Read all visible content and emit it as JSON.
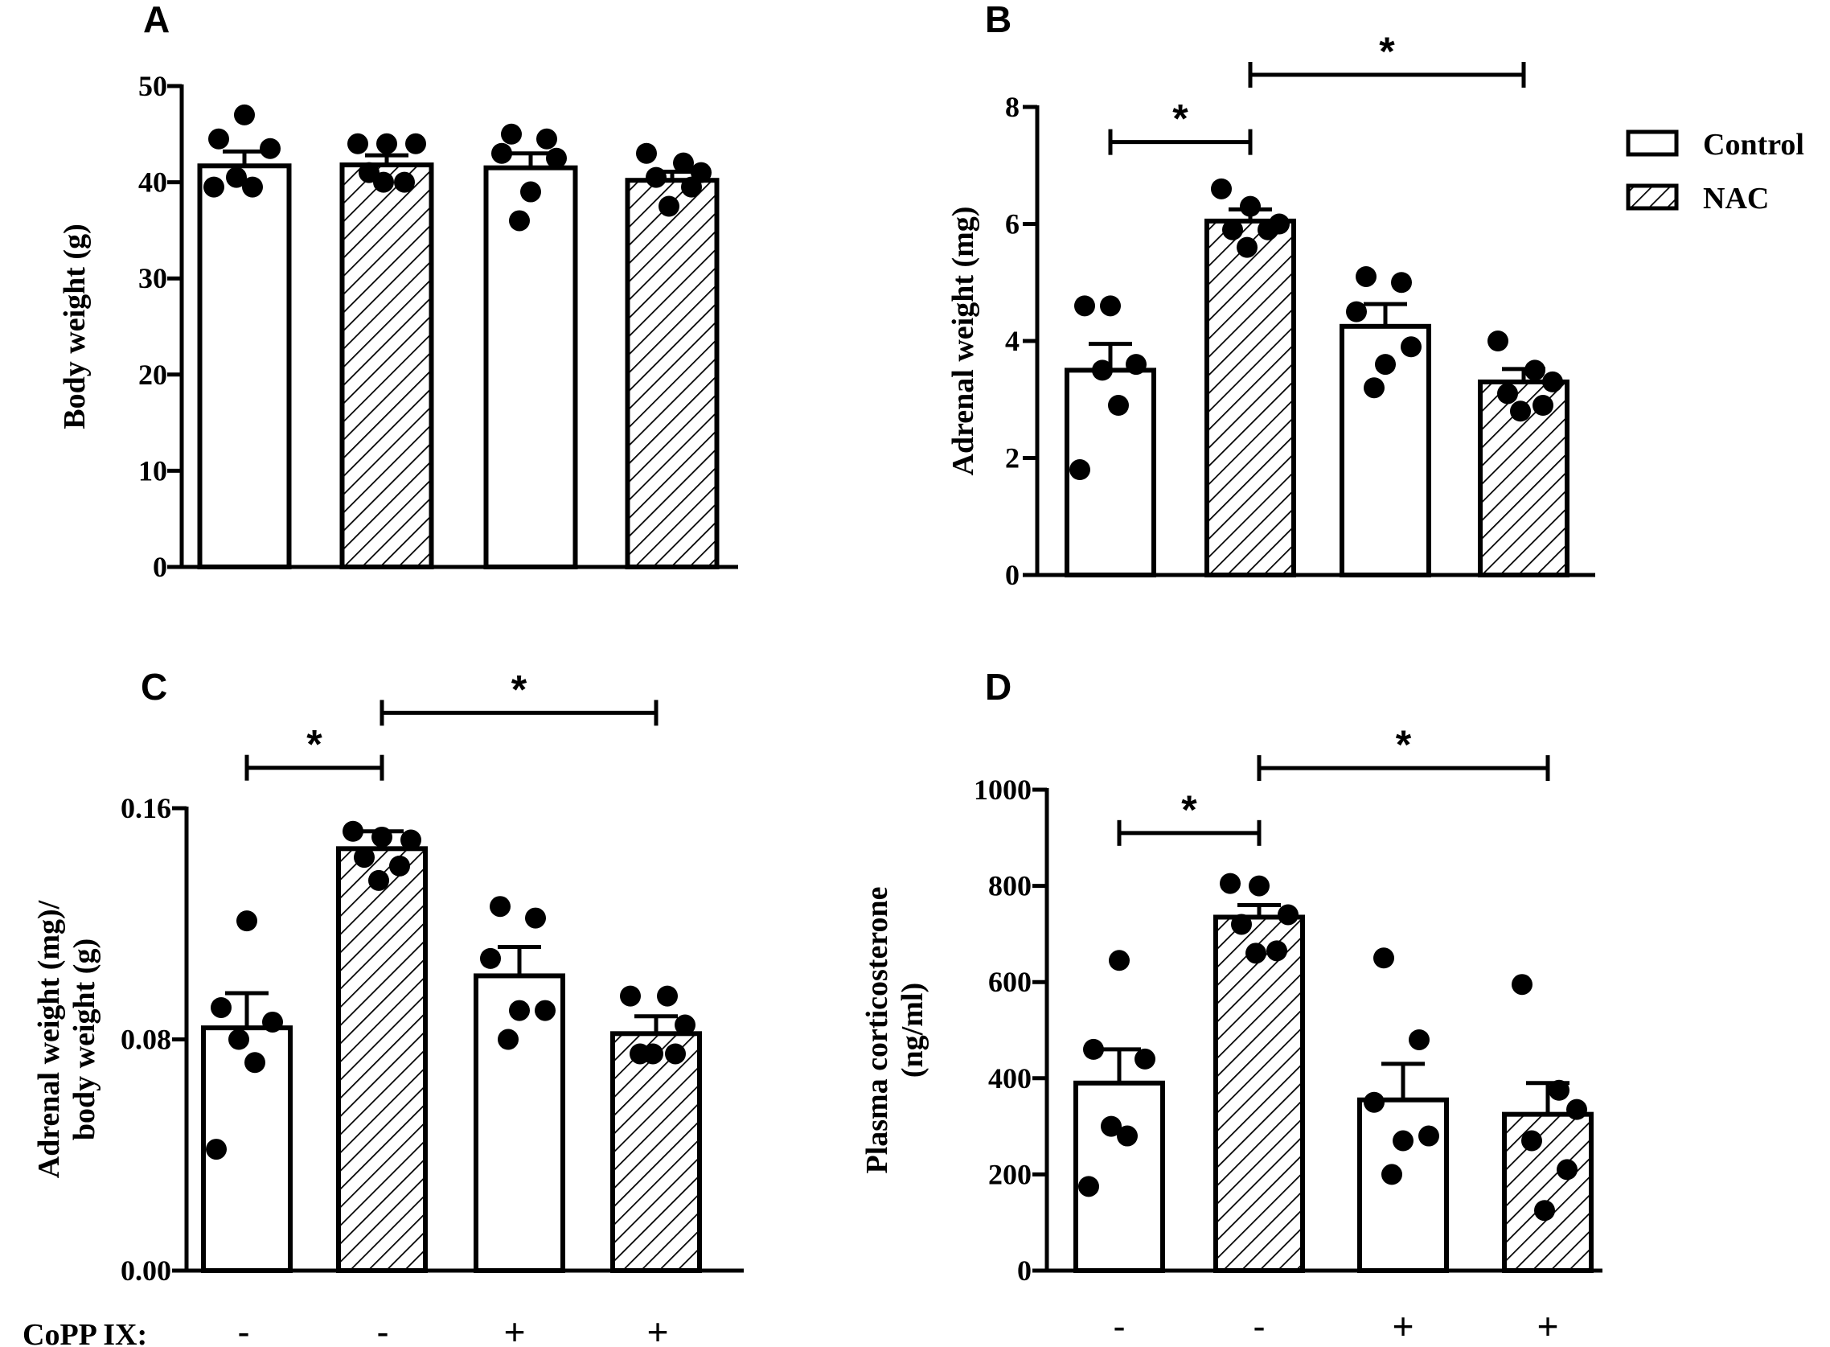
{
  "figure": {
    "row_label": "CoPP IX:",
    "copp_signs": [
      "-",
      "-",
      "+",
      "+"
    ],
    "legend": [
      "Control",
      "NAC"
    ]
  },
  "colors": {
    "stroke": "#000000",
    "fill": "#ffffff",
    "hatch": "#000000"
  },
  "chart_data": [
    {
      "panel": "A",
      "type": "bar",
      "ylabel": "Body weight (g)",
      "ylim": [
        0,
        50
      ],
      "yticks": [
        0,
        10,
        20,
        30,
        40,
        50
      ],
      "ytick_labels": [
        "0",
        "10",
        "20",
        "30",
        "40",
        "50"
      ],
      "categories": [
        "Control",
        "NAC",
        "Control + CoPP IX",
        "NAC + CoPP IX"
      ],
      "groups": [
        "Control",
        "NAC",
        "Control",
        "NAC"
      ],
      "values": [
        41.7,
        41.8,
        41.5,
        40.2
      ],
      "sem": [
        1.5,
        1.0,
        1.5,
        0.9
      ],
      "points": [
        [
          47,
          44.5,
          43.5,
          40.5,
          39.5,
          39.5
        ],
        [
          44,
          44,
          44,
          41,
          40,
          40
        ],
        [
          45,
          44.5,
          43,
          42.5,
          39,
          36
        ],
        [
          43,
          42,
          41,
          40.5,
          39.5,
          37.5
        ]
      ],
      "significance": []
    },
    {
      "panel": "B",
      "type": "bar",
      "ylabel": "Adrenal weight (mg)",
      "ylim": [
        0,
        8
      ],
      "yticks": [
        0,
        2,
        4,
        6,
        8
      ],
      "ytick_labels": [
        "0",
        "2",
        "4",
        "6",
        "8"
      ],
      "categories": [
        "Control",
        "NAC",
        "Control + CoPP IX",
        "NAC + CoPP IX"
      ],
      "groups": [
        "Control",
        "NAC",
        "Control",
        "NAC"
      ],
      "values": [
        3.5,
        6.05,
        4.25,
        3.3
      ],
      "sem": [
        0.45,
        0.2,
        0.38,
        0.22
      ],
      "points": [
        [
          4.6,
          4.6,
          3.6,
          3.5,
          2.9,
          1.8
        ],
        [
          6.6,
          6.3,
          6.0,
          5.9,
          5.9,
          5.6
        ],
        [
          5.1,
          5.0,
          4.5,
          3.9,
          3.6,
          3.2
        ],
        [
          4.0,
          3.5,
          3.3,
          3.1,
          2.9,
          2.8
        ]
      ],
      "significance": [
        {
          "from": 0,
          "to": 1,
          "y": 7.4,
          "label": "*"
        },
        {
          "from": 1,
          "to": 3,
          "y": 8.55,
          "label": "*"
        }
      ]
    },
    {
      "panel": "C",
      "type": "bar",
      "ylabel": "Adrenal weight (mg)/ body weight (g)",
      "ylim": [
        0,
        0.16
      ],
      "yticks": [
        0,
        0.08,
        0.16
      ],
      "ytick_labels": [
        "0.00",
        "0.08",
        "0.16"
      ],
      "categories": [
        "Control",
        "NAC",
        "Control + CoPP IX",
        "NAC + CoPP IX"
      ],
      "groups": [
        "Control",
        "NAC",
        "Control",
        "NAC"
      ],
      "values": [
        0.084,
        0.146,
        0.102,
        0.082
      ],
      "sem": [
        0.012,
        0.006,
        0.01,
        0.006
      ],
      "points": [
        [
          0.121,
          0.091,
          0.086,
          0.08,
          0.072,
          0.042
        ],
        [
          0.152,
          0.15,
          0.149,
          0.143,
          0.14,
          0.135
        ],
        [
          0.126,
          0.122,
          0.108,
          0.09,
          0.09,
          0.08
        ],
        [
          0.095,
          0.095,
          0.085,
          0.075,
          0.075,
          0.075
        ]
      ],
      "significance": [
        {
          "from": 0,
          "to": 1,
          "y": 0.174,
          "label": "*"
        },
        {
          "from": 1,
          "to": 3,
          "y": 0.193,
          "label": "*"
        }
      ]
    },
    {
      "panel": "D",
      "type": "bar",
      "ylabel": "Plasma corticosterone (ng/ml)",
      "ylim": [
        0,
        1000
      ],
      "yticks": [
        0,
        200,
        400,
        600,
        800,
        1000
      ],
      "ytick_labels": [
        "0",
        "200",
        "400",
        "600",
        "800",
        "1000"
      ],
      "categories": [
        "Control",
        "NAC",
        "Control + CoPP IX",
        "NAC + CoPP IX"
      ],
      "groups": [
        "Control",
        "NAC",
        "Control",
        "NAC"
      ],
      "values": [
        390,
        735,
        355,
        325
      ],
      "sem": [
        70,
        25,
        75,
        65
      ],
      "points": [
        [
          645,
          460,
          440,
          300,
          280,
          175
        ],
        [
          805,
          800,
          740,
          720,
          665,
          660
        ],
        [
          650,
          480,
          350,
          280,
          270,
          200
        ],
        [
          595,
          375,
          335,
          270,
          210,
          125
        ]
      ],
      "significance": [
        {
          "from": 0,
          "to": 1,
          "y": 910,
          "label": "*"
        },
        {
          "from": 1,
          "to": 3,
          "y": 1045,
          "label": "*"
        }
      ]
    }
  ]
}
